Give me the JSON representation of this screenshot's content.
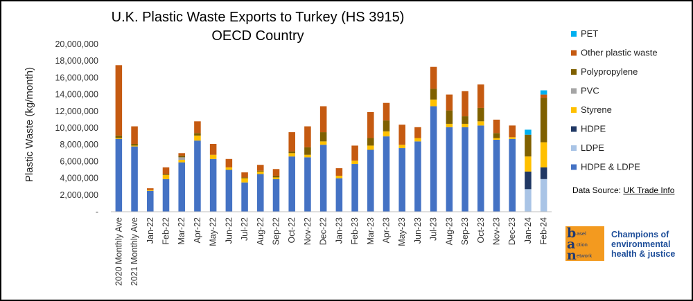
{
  "chart_data": {
    "type": "bar",
    "stacked": true,
    "title": "U.K. Plastic Waste Exports to Turkey (HS 3915)",
    "subtitle": "OECD Country",
    "ylabel": "Plastic Waste (kg/month)",
    "xlabel": "",
    "ylim": [
      0,
      20000000
    ],
    "yticks": [
      0,
      2000000,
      4000000,
      6000000,
      8000000,
      10000000,
      12000000,
      14000000,
      16000000,
      18000000,
      20000000
    ],
    "ytick_labels": [
      "-",
      "2,000,000",
      "4,000,000",
      "6,000,000",
      "8,000,000",
      "10,000,000",
      "12,000,000",
      "14,000,000",
      "16,000,000",
      "18,000,000",
      "20,000,000"
    ],
    "grid": false,
    "legend_position": "right",
    "categories": [
      "2020 Monthly Ave",
      "2021 Monthly Ave",
      "Jan-22",
      "Feb-22",
      "Mar-22",
      "Apr-22",
      "May-22",
      "Jun-22",
      "Jul-22",
      "Aug-22",
      "Sep-22",
      "Oct-22",
      "Nov-22",
      "Dec-22",
      "Jan-23",
      "Feb-23",
      "Mar-23",
      "Apr-23",
      "May-23",
      "Jun-23",
      "Jul-23",
      "Aug-23",
      "Sep-23",
      "Oct-23",
      "Nov-23",
      "Dec-23",
      "Jan-24",
      "Feb-24"
    ],
    "series": [
      {
        "name": "HDPE & LDPE",
        "color": "#4472c4",
        "values": [
          8700000,
          7800000,
          2500000,
          3900000,
          5900000,
          8500000,
          6300000,
          5000000,
          3500000,
          4500000,
          3900000,
          6600000,
          6500000,
          8000000,
          4000000,
          5700000,
          7400000,
          9000000,
          7600000,
          8400000,
          12600000,
          10100000,
          10100000,
          10300000,
          8600000,
          8700000,
          0,
          0
        ]
      },
      {
        "name": "LDPE",
        "color": "#a9c4e6",
        "values": [
          0,
          0,
          0,
          0,
          0,
          0,
          0,
          0,
          0,
          0,
          0,
          0,
          0,
          0,
          0,
          0,
          0,
          0,
          0,
          0,
          0,
          0,
          0,
          0,
          0,
          0,
          2700000,
          3900000
        ]
      },
      {
        "name": "HDPE",
        "color": "#203864",
        "values": [
          0,
          0,
          0,
          0,
          0,
          0,
          0,
          0,
          0,
          0,
          0,
          0,
          0,
          0,
          0,
          0,
          0,
          0,
          0,
          0,
          0,
          0,
          0,
          0,
          0,
          0,
          2100000,
          1400000
        ]
      },
      {
        "name": "Styrene",
        "color": "#ffc000",
        "values": [
          100000,
          100000,
          100000,
          500000,
          300000,
          600000,
          500000,
          300000,
          500000,
          300000,
          200000,
          400000,
          300000,
          400000,
          300000,
          400000,
          500000,
          600000,
          400000,
          400000,
          800000,
          400000,
          400000,
          500000,
          200000,
          200000,
          1800000,
          3000000
        ]
      },
      {
        "name": "PVC",
        "color": "#a5a5a5",
        "values": [
          0,
          0,
          0,
          0,
          300000,
          0,
          0,
          0,
          0,
          0,
          0,
          0,
          0,
          0,
          0,
          0,
          0,
          0,
          0,
          0,
          0,
          0,
          0,
          0,
          0,
          0,
          0,
          0
        ]
      },
      {
        "name": "Polypropylene",
        "color": "#7f6000",
        "values": [
          300000,
          200000,
          0,
          100000,
          200000,
          300000,
          0,
          0,
          100000,
          100000,
          200000,
          200000,
          900000,
          1100000,
          0,
          0,
          900000,
          1300000,
          0,
          0,
          1300000,
          1600000,
          900000,
          1600000,
          600000,
          0,
          2600000,
          5300000
        ]
      },
      {
        "name": "Other plastic waste",
        "color": "#c55a11",
        "values": [
          8400000,
          2100000,
          200000,
          800000,
          300000,
          1400000,
          1300000,
          1000000,
          600000,
          700000,
          800000,
          2300000,
          2500000,
          3100000,
          900000,
          1800000,
          3100000,
          2100000,
          2400000,
          1300000,
          2600000,
          1900000,
          3000000,
          2800000,
          1600000,
          1400000,
          0,
          400000
        ]
      },
      {
        "name": "PET",
        "color": "#00b0f0",
        "values": [
          0,
          0,
          0,
          0,
          0,
          0,
          0,
          0,
          0,
          0,
          0,
          0,
          0,
          0,
          0,
          0,
          0,
          0,
          0,
          0,
          0,
          0,
          0,
          0,
          0,
          0,
          600000,
          500000
        ]
      }
    ],
    "legend_order": [
      "PET",
      "Other plastic waste",
      "Polypropylene",
      "PVC",
      "Styrene",
      "HDPE",
      "LDPE",
      "HDPE & LDPE"
    ]
  },
  "source": {
    "prefix": "Data Source: ",
    "link_text": "UK Trade Info"
  },
  "logo": {
    "letters": [
      "b",
      "a",
      "n"
    ],
    "words": [
      "asel",
      "ction",
      "etwork"
    ],
    "tagline": "Champions of environmental health & justice"
  }
}
